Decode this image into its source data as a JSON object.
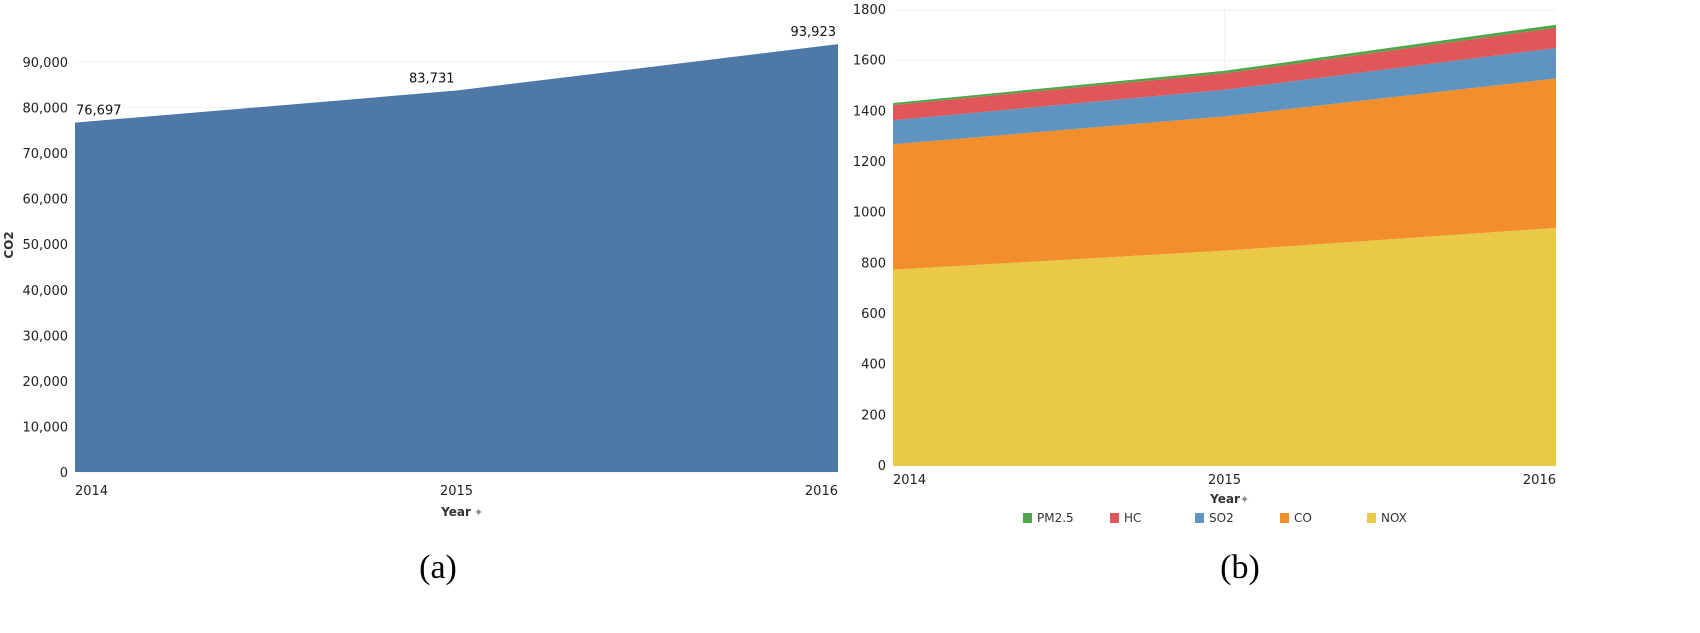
{
  "chart_data": [
    {
      "type": "area",
      "caption": "(a)",
      "xlabel": "Year",
      "ylabel": "CO2",
      "categories": [
        "2014",
        "2015",
        "2016"
      ],
      "series": [
        {
          "name": "CO2",
          "values": [
            76697,
            83731,
            93923
          ],
          "color": "#4e79a7"
        }
      ],
      "data_labels": [
        "76,697",
        "83,731",
        "93,923"
      ],
      "ylim": [
        0,
        90000
      ],
      "yticks": [
        "0",
        "10,000",
        "20,000",
        "30,000",
        "40,000",
        "50,000",
        "60,000",
        "70,000",
        "80,000",
        "90,000"
      ],
      "ytick_values": [
        0,
        10000,
        20000,
        30000,
        40000,
        50000,
        60000,
        70000,
        80000,
        90000
      ],
      "grid": true
    },
    {
      "type": "area",
      "stacked": true,
      "caption": "(b)",
      "xlabel": "Year",
      "ylabel": "",
      "categories": [
        "2014",
        "2015",
        "2016"
      ],
      "series": [
        {
          "name": "NOX",
          "values": [
            775,
            850,
            940
          ],
          "color": "#e9c945"
        },
        {
          "name": "CO",
          "values": [
            495,
            530,
            590
          ],
          "color": "#f28e2b"
        },
        {
          "name": "SO2",
          "values": [
            95,
            105,
            120
          ],
          "color": "#5f93c0"
        },
        {
          "name": "HC",
          "values": [
            60,
            65,
            80
          ],
          "color": "#e05759"
        },
        {
          "name": "PM2.5",
          "values": [
            8,
            10,
            12
          ],
          "color": "#4fa64a"
        }
      ],
      "legend_order": [
        "PM2.5",
        "HC",
        "SO2",
        "CO",
        "NOX"
      ],
      "legend_position": "bottom",
      "ylim": [
        0,
        1800
      ],
      "yticks": [
        "0",
        "200",
        "400",
        "600",
        "800",
        "1000",
        "1200",
        "1400",
        "1600",
        "1800"
      ],
      "ytick_values": [
        0,
        200,
        400,
        600,
        800,
        1000,
        1200,
        1400,
        1600,
        1800
      ],
      "grid": true
    }
  ]
}
